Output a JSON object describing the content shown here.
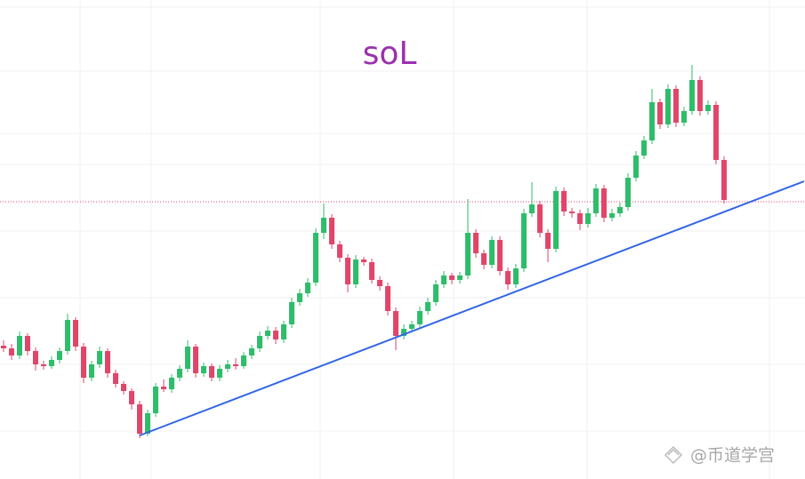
{
  "chart_data": {
    "type": "candlestick",
    "title": "soL",
    "watermark": "@币道学宫",
    "up_color": "#2ebd6b",
    "down_color": "#e2456a",
    "trendline_color": "#3366e6",
    "price_line_color": "#e2456a",
    "ylim": [
      0,
      539
    ],
    "grid": true,
    "ohlc": [
      [
        150,
        156,
        143,
        147
      ],
      [
        147,
        152,
        134,
        139
      ],
      [
        139,
        166,
        135,
        161
      ],
      [
        161,
        164,
        139,
        144
      ],
      [
        144,
        148,
        122,
        129
      ],
      [
        129,
        133,
        123,
        127
      ],
      [
        127,
        138,
        124,
        134
      ],
      [
        134,
        148,
        130,
        144
      ],
      [
        144,
        186,
        140,
        179
      ],
      [
        179,
        182,
        144,
        149
      ],
      [
        149,
        153,
        108,
        114
      ],
      [
        114,
        133,
        110,
        129
      ],
      [
        129,
        149,
        125,
        144
      ],
      [
        144,
        147,
        114,
        119
      ],
      [
        119,
        123,
        103,
        107
      ],
      [
        107,
        110,
        95,
        99
      ],
      [
        99,
        102,
        78,
        84
      ],
      [
        84,
        88,
        46,
        51
      ],
      [
        51,
        78,
        48,
        74
      ],
      [
        74,
        108,
        70,
        104
      ],
      [
        104,
        112,
        98,
        101
      ],
      [
        101,
        118,
        97,
        114
      ],
      [
        114,
        128,
        110,
        124
      ],
      [
        124,
        156,
        120,
        149
      ],
      [
        149,
        152,
        114,
        119
      ],
      [
        119,
        131,
        115,
        127
      ],
      [
        127,
        130,
        110,
        114
      ],
      [
        114,
        128,
        110,
        124
      ],
      [
        124,
        134,
        120,
        129
      ],
      [
        129,
        136,
        123,
        127
      ],
      [
        127,
        143,
        124,
        139
      ],
      [
        139,
        151,
        135,
        147
      ],
      [
        147,
        166,
        143,
        161
      ],
      [
        161,
        172,
        157,
        167
      ],
      [
        167,
        171,
        152,
        157
      ],
      [
        157,
        178,
        153,
        174
      ],
      [
        174,
        204,
        170,
        199
      ],
      [
        199,
        214,
        195,
        209
      ],
      [
        209,
        226,
        205,
        221
      ],
      [
        221,
        282,
        217,
        277
      ],
      [
        277,
        310,
        270,
        294
      ],
      [
        294,
        298,
        259,
        264
      ],
      [
        264,
        268,
        244,
        249
      ],
      [
        249,
        253,
        210,
        219
      ],
      [
        219,
        252,
        215,
        247
      ],
      [
        247,
        250,
        240,
        244
      ],
      [
        244,
        248,
        220,
        224
      ],
      [
        224,
        228,
        212,
        217
      ],
      [
        217,
        221,
        184,
        189
      ],
      [
        189,
        193,
        145,
        161
      ],
      [
        161,
        174,
        157,
        169
      ],
      [
        169,
        178,
        165,
        174
      ],
      [
        174,
        194,
        170,
        189
      ],
      [
        189,
        204,
        185,
        199
      ],
      [
        199,
        224,
        195,
        219
      ],
      [
        219,
        234,
        215,
        229
      ],
      [
        229,
        232,
        219,
        224
      ],
      [
        224,
        233,
        220,
        229
      ],
      [
        229,
        315,
        225,
        277
      ],
      [
        277,
        281,
        249,
        254
      ],
      [
        254,
        258,
        236,
        241
      ],
      [
        241,
        273,
        237,
        269
      ],
      [
        269,
        273,
        229,
        234
      ],
      [
        234,
        238,
        213,
        219
      ],
      [
        219,
        242,
        215,
        237
      ],
      [
        237,
        304,
        233,
        299
      ],
      [
        299,
        334,
        295,
        309
      ],
      [
        309,
        313,
        272,
        277
      ],
      [
        277,
        281,
        244,
        259
      ],
      [
        259,
        329,
        255,
        324
      ],
      [
        324,
        328,
        296,
        301
      ],
      [
        301,
        305,
        294,
        299
      ],
      [
        299,
        303,
        280,
        287
      ],
      [
        287,
        305,
        283,
        299
      ],
      [
        299,
        332,
        295,
        327
      ],
      [
        327,
        331,
        289,
        294
      ],
      [
        294,
        304,
        290,
        299
      ],
      [
        299,
        311,
        295,
        306
      ],
      [
        306,
        344,
        302,
        339
      ],
      [
        339,
        369,
        335,
        364
      ],
      [
        364,
        386,
        360,
        381
      ],
      [
        381,
        439,
        377,
        424
      ],
      [
        424,
        428,
        394,
        399
      ],
      [
        399,
        444,
        395,
        439
      ],
      [
        439,
        443,
        396,
        401
      ],
      [
        401,
        419,
        397,
        414
      ],
      [
        414,
        466,
        410,
        449
      ],
      [
        449,
        453,
        409,
        414
      ],
      [
        414,
        426,
        410,
        421
      ],
      [
        421,
        425,
        354,
        359
      ],
      [
        359,
        363,
        310,
        314
      ]
    ],
    "trendline": {
      "from": [
        17,
        49
      ],
      "to": [
        100,
        335
      ]
    },
    "price_line": 312
  }
}
